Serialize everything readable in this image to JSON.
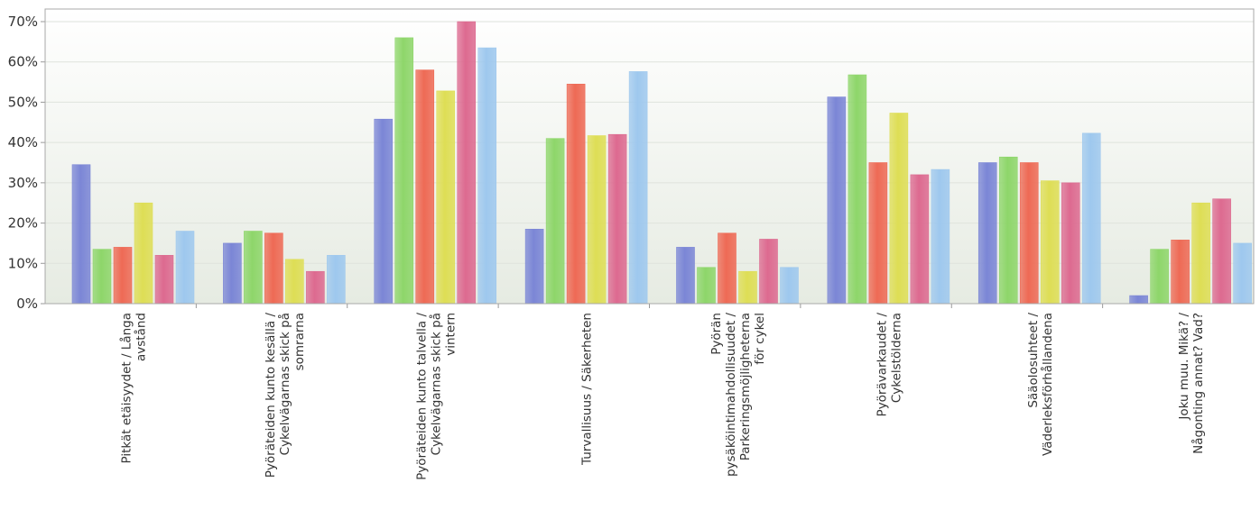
{
  "chart_data": {
    "type": "bar",
    "title": "",
    "xlabel": "",
    "ylabel": "",
    "ylim": [
      0,
      70
    ],
    "y_ticks": [
      "0%",
      "10%",
      "20%",
      "30%",
      "40%",
      "50%",
      "60%",
      "70%"
    ],
    "grid": true,
    "legend": "none",
    "categories": [
      "Pitkät etäisyydet / Långa avstånd",
      "Pyöräteiden kunto kesällä / Cykelvägarnas skick på somrarna",
      "Pyöräteiden kunto talvella / Cykelvägarnas skick på vintern",
      "Turvallisuus / Säkerheten",
      "Pyörän pysäköintimahdollisuudet / Parkeringsmöjligheterna för cykel",
      "Pyörävarkaudet / Cykelstölderna",
      "Sääolosuhteet / Väderleksförhållandena",
      "Joku muu. Mikä? / Någonting annat? Vad?"
    ],
    "category_label_lines": [
      [
        "Pitkät etäisyydet / Långa",
        "avstånd"
      ],
      [
        "Pyöräteiden kunto kesällä /",
        "Cykelvägarnas skick på",
        "somrarna"
      ],
      [
        "Pyöräteiden kunto talvella /",
        "Cykelvägarnas skick på",
        "vintern"
      ],
      [
        "Turvallisuus / Säkerheten"
      ],
      [
        "Pyörän",
        "pysäköintimahdollisuudet /",
        "Parkeringsmöjligheterna",
        "för cykel"
      ],
      [
        "Pyörävarkaudet /",
        "Cykelstölderna"
      ],
      [
        "Sääolosuhteet /",
        "Väderleksförhållandena"
      ],
      [
        "Joku muu. Mikä? /",
        "Någonting annat? Vad?"
      ]
    ],
    "series": [
      {
        "color": "#7b86d6",
        "values": [
          34.5,
          15,
          45.8,
          18.5,
          14,
          51.3,
          35,
          2
        ]
      },
      {
        "color": "#8ed66a",
        "values": [
          13.5,
          18,
          66,
          41,
          9,
          56.8,
          36.4,
          13.5
        ]
      },
      {
        "color": "#ee6a55",
        "values": [
          14,
          17.5,
          58,
          54.5,
          17.5,
          35,
          35,
          15.8
        ]
      },
      {
        "color": "#dede55",
        "values": [
          25,
          11,
          52.8,
          41.7,
          8,
          47.3,
          30.5,
          25
        ]
      },
      {
        "color": "#dd6a90",
        "values": [
          12,
          8,
          70,
          42,
          16,
          32,
          30,
          26
        ]
      },
      {
        "color": "#9ec8ee",
        "values": [
          18,
          12,
          63.5,
          57.6,
          9,
          33.3,
          42.3,
          15
        ]
      }
    ]
  }
}
